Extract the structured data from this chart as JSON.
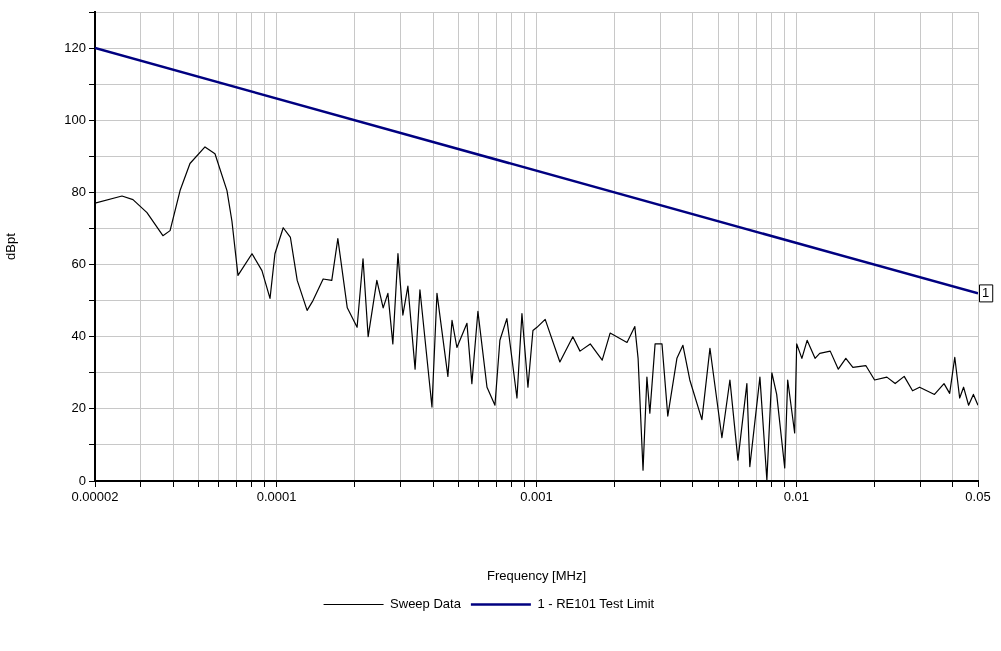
{
  "chart_data": {
    "type": "line",
    "xlabel": "Frequency [MHz]",
    "ylabel": "dBpt",
    "log": "x",
    "grid": true,
    "legend": "bottom",
    "marker": "none",
    "xlim": [
      2e-05,
      0.05
    ],
    "ylim": [
      0,
      130
    ],
    "xticks": [
      {
        "value": 2e-05,
        "label": "0.00002"
      },
      {
        "value": 3e-05,
        "label": null
      },
      {
        "value": 4e-05,
        "label": null
      },
      {
        "value": 5e-05,
        "label": null
      },
      {
        "value": 6e-05,
        "label": null
      },
      {
        "value": 7e-05,
        "label": null
      },
      {
        "value": 8e-05,
        "label": null
      },
      {
        "value": 9e-05,
        "label": null
      },
      0.0001,
      {
        "value": 0.0002,
        "label": null
      },
      {
        "value": 0.0003,
        "label": null
      },
      {
        "value": 0.0004,
        "label": null
      },
      {
        "value": 0.0005,
        "label": null
      },
      {
        "value": 0.0006,
        "label": null
      },
      {
        "value": 0.0007,
        "label": null
      },
      {
        "value": 0.0008,
        "label": null
      },
      {
        "value": 0.0009,
        "label": null
      },
      0.001,
      {
        "value": 0.002,
        "label": null
      },
      {
        "value": 0.003,
        "label": null
      },
      {
        "value": 0.004,
        "label": null
      },
      {
        "value": 0.005,
        "label": null
      },
      {
        "value": 0.006,
        "label": null
      },
      {
        "value": 0.007,
        "label": null
      },
      {
        "value": 0.008,
        "label": null
      },
      {
        "value": 0.009,
        "label": null
      },
      0.01,
      {
        "value": 0.02,
        "label": null
      },
      {
        "value": 0.03,
        "label": null
      },
      {
        "value": 0.04,
        "label": null
      },
      0.05
    ],
    "yticks": [
      0,
      {
        "value": 10,
        "label": null
      },
      20,
      {
        "value": 30,
        "label": null
      },
      40,
      {
        "value": 50,
        "label": null
      },
      60,
      {
        "value": 70,
        "label": null
      },
      80,
      {
        "value": 90,
        "label": null
      },
      100,
      {
        "value": 110,
        "label": null
      },
      120,
      {
        "value": 130,
        "label": null
      }
    ],
    "series": [
      {
        "name": "Sweep Data",
        "color": "#000000",
        "x": [
          2e-05,
          2.54e-05,
          2.8e-05,
          3.17e-05,
          3.65e-05,
          3.89e-05,
          4.25e-05,
          4.64e-05,
          5.3e-05,
          5.79e-05,
          6.44e-05,
          6.73e-05,
          7.1e-05,
          8.04e-05,
          8.78e-05,
          9.43e-05,
          9.85e-05,
          0.000106,
          0.000113,
          0.00012,
          0.000131,
          0.000138,
          0.000151,
          0.000163,
          0.000172,
          0.000187,
          0.000204,
          0.000215,
          0.000225,
          0.000243,
          0.000257,
          0.000268,
          0.00028,
          0.000293,
          0.000306,
          0.00032,
          0.000341,
          0.000356,
          0.000396,
          0.000414,
          0.000456,
          0.000473,
          0.000494,
          0.00054,
          0.000564,
          0.000595,
          0.000645,
          0.000692,
          0.000723,
          0.000769,
          0.000841,
          0.000879,
          0.000927,
          0.000969,
          0.001004,
          0.00108,
          0.00123,
          0.00138,
          0.00147,
          0.00161,
          0.00179,
          0.00192,
          0.00223,
          0.00239,
          0.00246,
          0.00257,
          0.00266,
          0.00273,
          0.00286,
          0.00304,
          0.0032,
          0.00347,
          0.00366,
          0.00389,
          0.00433,
          0.00465,
          0.00517,
          0.00555,
          0.00596,
          0.00645,
          0.00662,
          0.00724,
          0.0077,
          0.00805,
          0.0084,
          0.00902,
          0.00926,
          0.00985,
          0.01003,
          0.0105,
          0.011,
          0.0118,
          0.0123,
          0.0135,
          0.0145,
          0.0155,
          0.0165,
          0.0185,
          0.02,
          0.0223,
          0.024,
          0.026,
          0.028,
          0.0298,
          0.034,
          0.037,
          0.0389,
          0.0407,
          0.0425,
          0.044,
          0.046,
          0.048,
          0.05
        ],
        "values": [
          77,
          79,
          78,
          74.4,
          68,
          69.4,
          80.5,
          88,
          92.6,
          90.7,
          80.5,
          72,
          57,
          63,
          58.3,
          50.6,
          63,
          70.2,
          67.5,
          55.6,
          47.3,
          50,
          56,
          55.6,
          67.2,
          48,
          42.6,
          61.6,
          40,
          55.6,
          48,
          52,
          38,
          63,
          46,
          54,
          31,
          53,
          20.5,
          52,
          29,
          44.5,
          37,
          43.7,
          27,
          47,
          26,
          21,
          39,
          45,
          23,
          46.4,
          26,
          41.7,
          42.6,
          44.8,
          33,
          40,
          36,
          38,
          33.5,
          41,
          38.4,
          42.8,
          34,
          3,
          28.8,
          18.8,
          38,
          38,
          18,
          34,
          37.6,
          28,
          17,
          36.8,
          12,
          28,
          5.8,
          27,
          4,
          28.8,
          0.3,
          30,
          24,
          3.6,
          28,
          13.3,
          38,
          34,
          39,
          34,
          35.4,
          36,
          31,
          34,
          31.5,
          32,
          28,
          28.8,
          27,
          29,
          25,
          26,
          24,
          27,
          24.3,
          34.3,
          23,
          26,
          21,
          24,
          21
        ]
      },
      {
        "name": "1 - RE101 Test Limit",
        "color": "#000080",
        "x": [
          2e-05,
          0.05
        ],
        "values": [
          120,
          52
        ]
      }
    ],
    "annotations": [
      {
        "text": "1",
        "x": 0.05,
        "y": 52
      }
    ]
  }
}
